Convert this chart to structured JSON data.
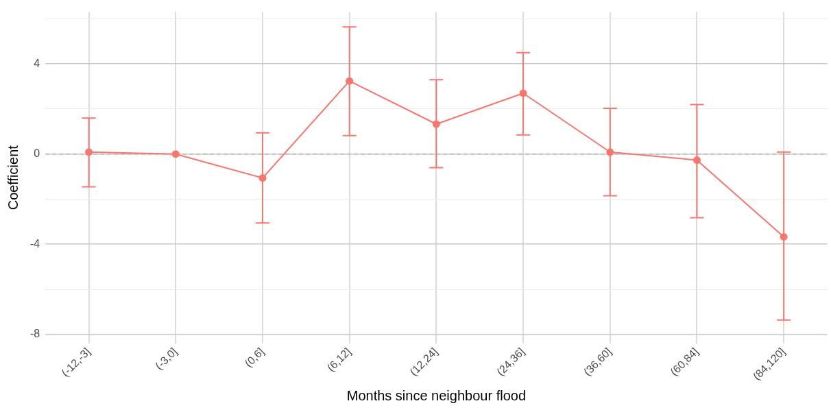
{
  "chart_data": {
    "type": "line",
    "xlabel": "Months since neighbour flood",
    "ylabel": "Coefficient",
    "categories": [
      "(-12,-3]",
      "(-3,0]",
      "(0,6]",
      "(6,12]",
      "(12,24]",
      "(24,36]",
      "(36,60]",
      "(60,84]",
      "(84,120]"
    ],
    "series": [
      {
        "color": "#f8766d",
        "values": [
          0.09,
          0,
          -1.06,
          3.24,
          1.33,
          2.7,
          0.09,
          -0.27,
          -3.67
        ],
        "errors": [
          [
            -1.45,
            1.6
          ],
          null,
          [
            -3.06,
            0.94
          ],
          [
            0.82,
            5.64
          ],
          [
            -0.6,
            3.3
          ],
          [
            0.85,
            4.5
          ],
          [
            -1.85,
            2.03
          ],
          [
            -2.82,
            2.2
          ],
          [
            -7.36,
            0.09
          ]
        ]
      }
    ],
    "ylim": [
      -8.4,
      6.3
    ],
    "yticks": [
      -8,
      {
        "value": -6,
        "label": null
      },
      -4,
      {
        "value": -2,
        "label": null
      },
      0,
      {
        "value": 2,
        "label": null
      },
      4,
      {
        "value": 6,
        "label": null
      }
    ],
    "ref_lines": [
      {
        "axis": "y",
        "value": 0,
        "color": "#bebebe",
        "line_style": "dashed"
      }
    ],
    "grid": true,
    "legend": false,
    "marker": "circle",
    "line_style": "solid"
  }
}
